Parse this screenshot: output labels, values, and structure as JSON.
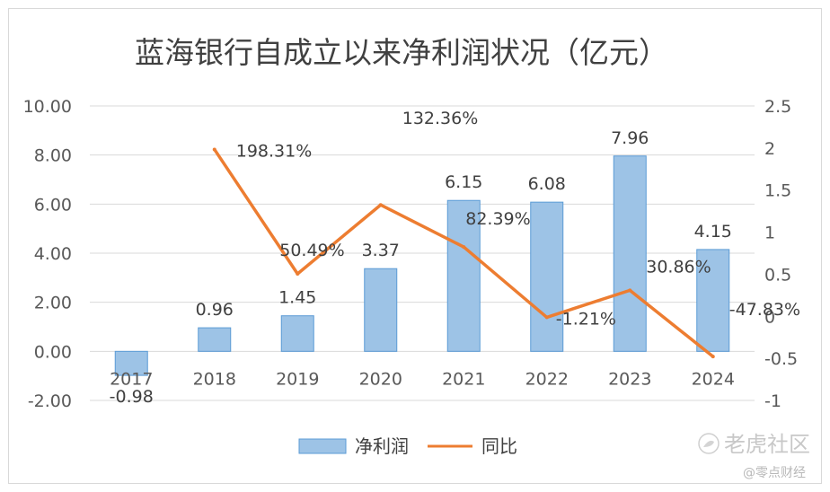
{
  "chart_data": {
    "type": "bar",
    "title": "蓝海银行自成立以来净利润状况（亿元）",
    "categories": [
      "2017",
      "2018",
      "2019",
      "2020",
      "2021",
      "2022",
      "2023",
      "2024"
    ],
    "series": [
      {
        "name": "净利润",
        "type": "bar",
        "axis": "left",
        "values": [
          -0.98,
          0.96,
          1.45,
          3.37,
          6.15,
          6.08,
          7.96,
          4.15
        ],
        "labels": [
          "-0.98",
          "0.96",
          "1.45",
          "3.37",
          "6.15",
          "6.08",
          "7.96",
          "4.15"
        ],
        "color": "#9dc3e6"
      },
      {
        "name": "同比",
        "type": "line",
        "axis": "right",
        "values": [
          null,
          1.9831,
          0.5049,
          1.3236,
          0.8239,
          -0.0121,
          0.3086,
          -0.4783
        ],
        "labels": [
          "",
          "198.31%",
          "50.49%",
          "132.36%",
          "82.39%",
          "-1.21%",
          "30.86%",
          "-47.83%"
        ],
        "color": "#ed7d31"
      }
    ],
    "yleft": {
      "ylim": [
        -2,
        10
      ],
      "ticks": [
        "-2.00",
        "0.00",
        "2.00",
        "4.00",
        "6.00",
        "8.00",
        "10.00"
      ]
    },
    "yright": {
      "ylim": [
        -1,
        2.5
      ],
      "ticks": [
        "-1",
        "-0.5",
        "0",
        "0.5",
        "1",
        "1.5",
        "2",
        "2.5"
      ]
    },
    "grid": true,
    "legend_position": "bottom"
  },
  "watermark": {
    "brand": "老虎社区",
    "author": "@零点财经"
  }
}
